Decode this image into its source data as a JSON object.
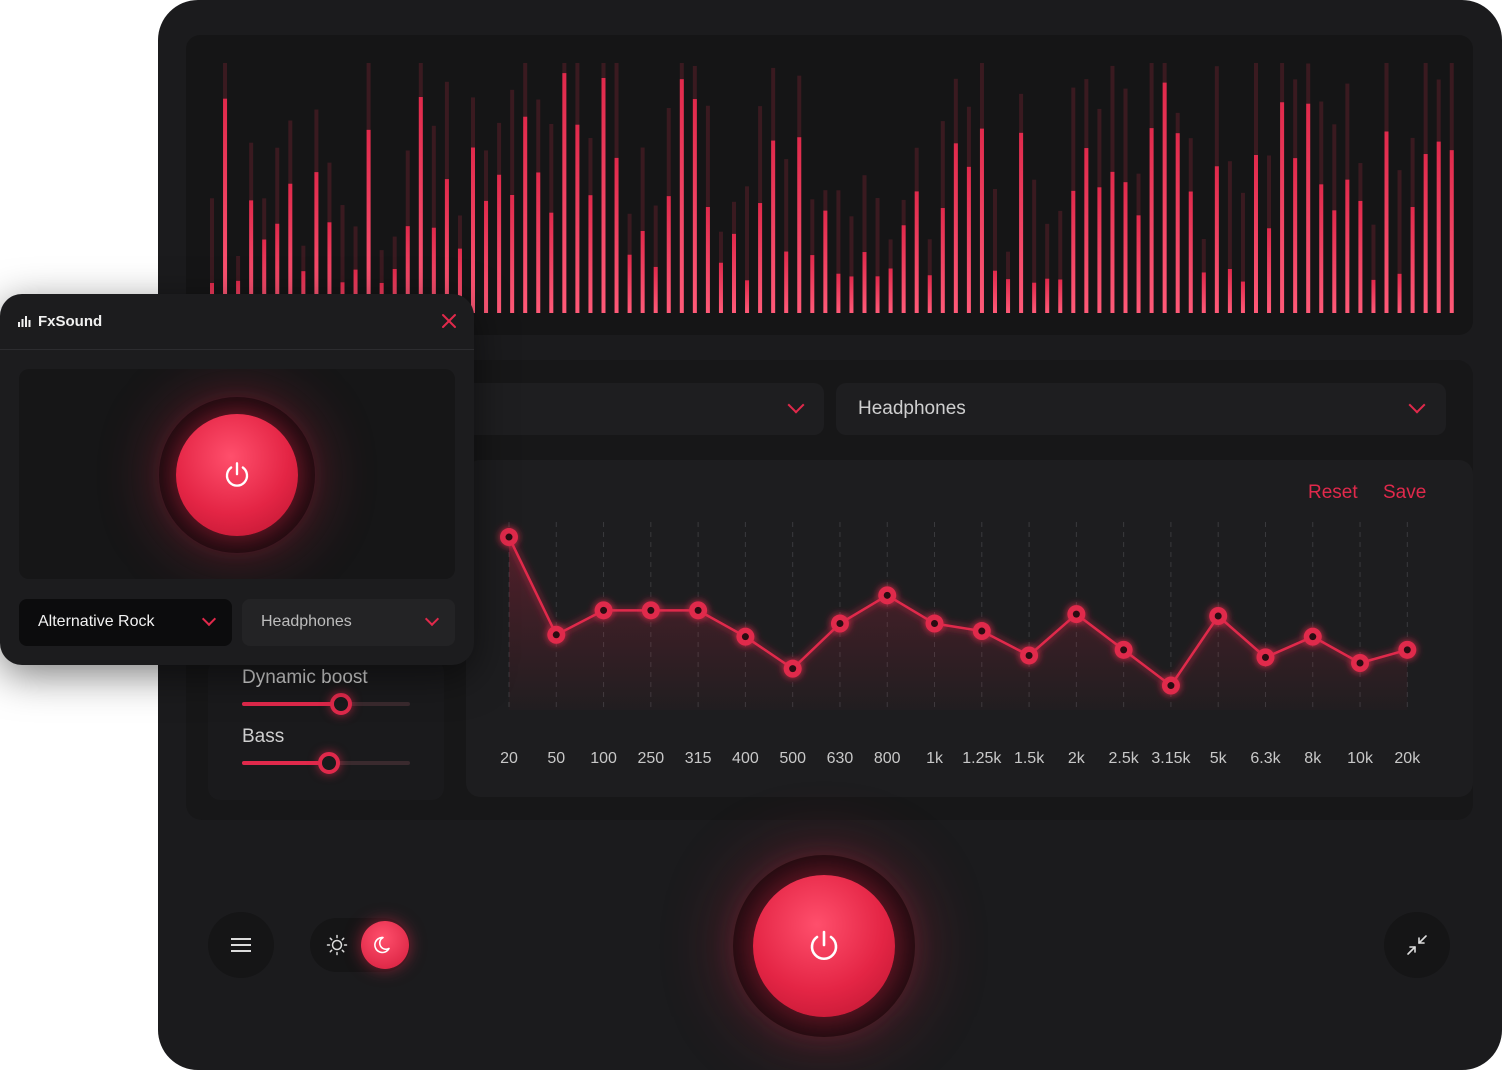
{
  "app": {
    "name": "FxSound"
  },
  "main": {
    "preset_dropdown": {
      "value": ""
    },
    "output_dropdown": {
      "value": "Headphones"
    },
    "eq": {
      "reset_label": "Reset",
      "save_label": "Save",
      "bands": [
        "20",
        "50",
        "100",
        "250",
        "315",
        "400",
        "500",
        "630",
        "800",
        "1k",
        "1.25k",
        "1.5k",
        "2k",
        "2.5k",
        "3.15k",
        "5k",
        "6.3k",
        "8k",
        "10k",
        "20k"
      ],
      "levels": [
        0.92,
        0.4,
        0.53,
        0.53,
        0.53,
        0.39,
        0.22,
        0.46,
        0.61,
        0.46,
        0.42,
        0.29,
        0.51,
        0.32,
        0.13,
        0.5,
        0.28,
        0.39,
        0.25,
        0.32
      ]
    },
    "effects": {
      "dynamic_boost": {
        "label": "Dynamic boost",
        "value": 0.59
      },
      "bass": {
        "label": "Bass",
        "value": 0.52
      }
    },
    "theme": {
      "active": "dark"
    },
    "icons": {
      "menu": "hamburger-icon",
      "sun": "sun-icon",
      "moon": "moon-icon",
      "power": "power-icon",
      "minimize": "minimize-arrows-icon"
    }
  },
  "mini": {
    "logo": "FxSound",
    "preset_dropdown": {
      "value": "Alternative Rock"
    },
    "output_dropdown": {
      "value": "Headphones"
    }
  },
  "colors": {
    "accent": "#e0294b",
    "background": "#1b1b1d",
    "panel": "#171718"
  }
}
